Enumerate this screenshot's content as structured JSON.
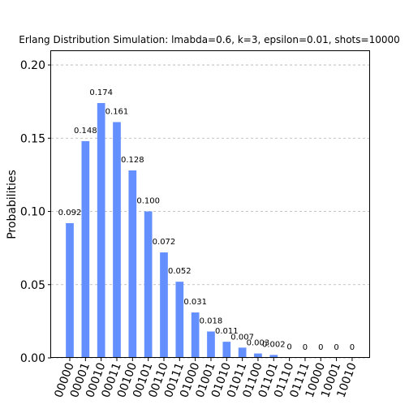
{
  "chart_data": {
    "type": "bar",
    "title": "Erlang Distribution Simulation: lmabda=0.6, k=3, epsilon=0.01, shots=10000",
    "xlabel": "",
    "ylabel": "Probabilities",
    "ylim": [
      0,
      0.21
    ],
    "yticks": [
      "0.00",
      "0.05",
      "0.10",
      "0.15",
      "0.20"
    ],
    "grid": "horizontal dashed",
    "bar_color": "#648fff",
    "categories": [
      "00000",
      "00001",
      "00010",
      "00011",
      "00100",
      "00101",
      "00110",
      "00111",
      "01000",
      "01001",
      "01010",
      "01011",
      "01100",
      "01101",
      "01110",
      "01111",
      "10000",
      "10001",
      "10010"
    ],
    "values": [
      0.092,
      0.148,
      0.174,
      0.161,
      0.128,
      0.1,
      0.072,
      0.052,
      0.031,
      0.018,
      0.011,
      0.007,
      0.003,
      0.002,
      0.0004,
      0,
      0,
      0,
      0
    ],
    "value_labels": [
      "0.092",
      "0.148",
      "0.174",
      "0.161",
      "0.128",
      "0.100",
      "0.072",
      "0.052",
      "0.031",
      "0.018",
      "0.011",
      "0.007",
      "0.003",
      "0.002",
      "0",
      "0",
      "0",
      "0",
      "0"
    ]
  }
}
